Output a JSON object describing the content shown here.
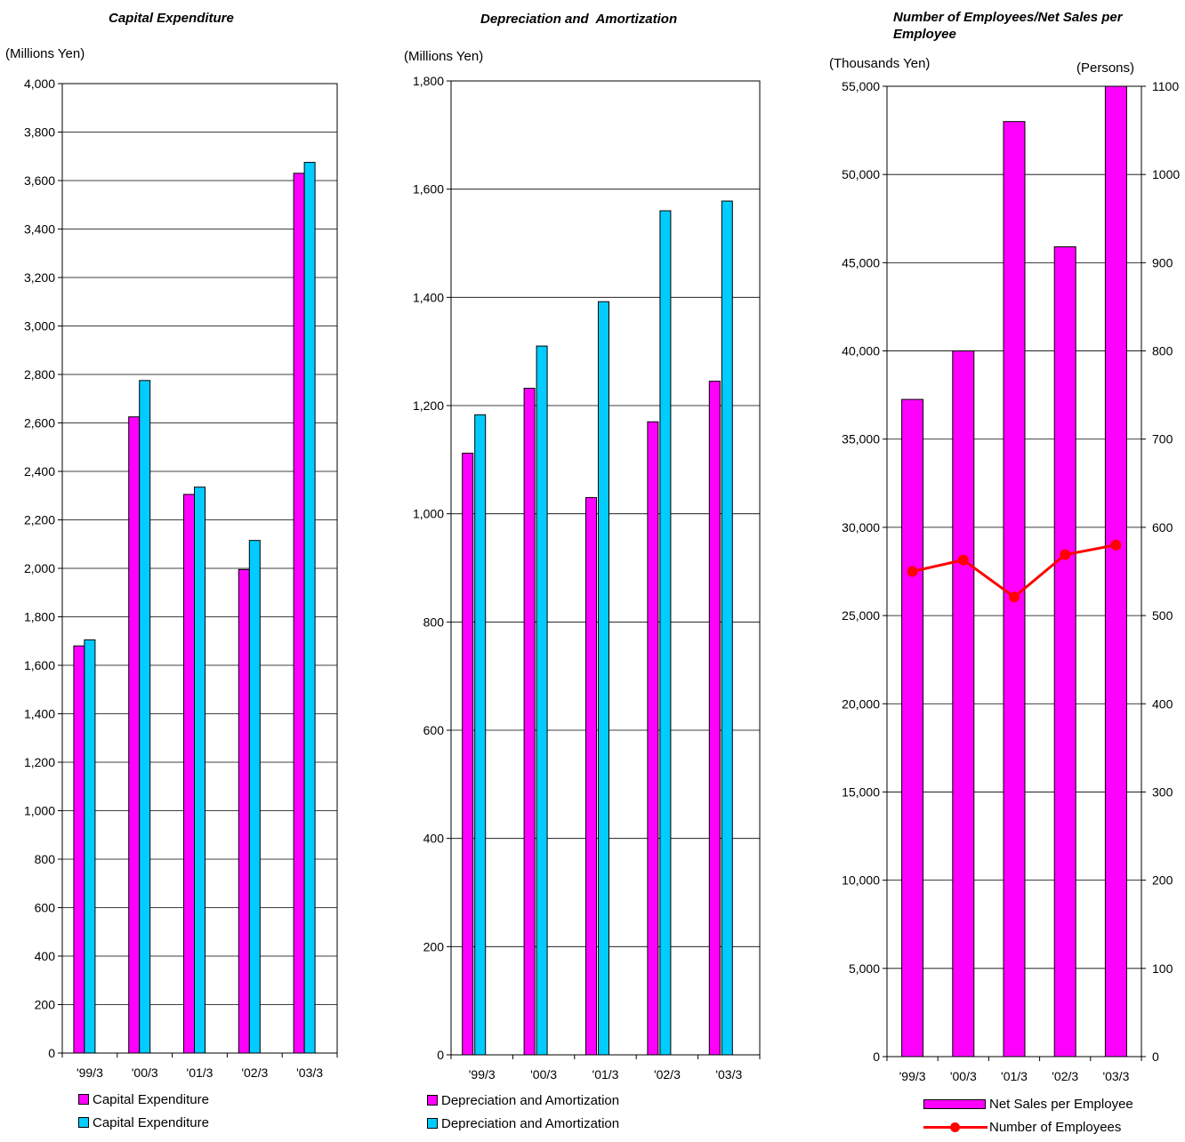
{
  "chart_data": [
    {
      "type": "bar",
      "title": "Capital Expenditure",
      "ylabel": "(Millions Yen)",
      "categories": [
        "'99/3",
        "'00/3",
        "'01/3",
        "'02/3",
        "'03/3"
      ],
      "yticks": [
        "0",
        "200",
        "400",
        "600",
        "800",
        "1,000",
        "1,200",
        "1,400",
        "1,600",
        "1,800",
        "2,000",
        "2,200",
        "2,400",
        "2,600",
        "2,800",
        "3,000",
        "3,200",
        "3,400",
        "3,600",
        "3,800",
        "4,000"
      ],
      "ylim": [
        0,
        4000
      ],
      "grid": true,
      "legend_position": "bottom",
      "series": [
        {
          "name": "Capital Expenditure",
          "color": "#ff00ff",
          "values": [
            1680,
            2625,
            2305,
            1995,
            3630
          ]
        },
        {
          "name": "Capital Expenditure",
          "color": "#00ccff",
          "values": [
            1705,
            2775,
            2335,
            2115,
            3675
          ]
        }
      ]
    },
    {
      "type": "bar",
      "title": "Depreciation and  Amortization",
      "ylabel": "(Millions Yen)",
      "categories": [
        "'99/3",
        "'00/3",
        "'01/3",
        "'02/3",
        "'03/3"
      ],
      "yticks": [
        "0",
        "200",
        "400",
        "600",
        "800",
        "1,000",
        "1,200",
        "1,400",
        "1,600",
        "1,800"
      ],
      "ylim": [
        0,
        1800
      ],
      "grid": true,
      "legend_position": "bottom",
      "series": [
        {
          "name": "Depreciation and Amortization",
          "color": "#ff00ff",
          "values": [
            1112,
            1232,
            1030,
            1170,
            1245
          ]
        },
        {
          "name": "Depreciation and Amortization",
          "color": "#00ccff",
          "values": [
            1183,
            1310,
            1392,
            1560,
            1578
          ]
        }
      ]
    },
    {
      "type": "bar",
      "title": "Number of Employees/Net Sales per Employee",
      "ylabel": "(Thousands Yen)",
      "y2label": "(Persons)",
      "categories": [
        "'99/3",
        "'00/3",
        "'01/3",
        "'02/3",
        "'03/3"
      ],
      "yticks": [
        "0",
        "5,000",
        "10,000",
        "15,000",
        "20,000",
        "25,000",
        "30,000",
        "35,000",
        "40,000",
        "45,000",
        "50,000",
        "55,000"
      ],
      "y2ticks": [
        "0",
        "100",
        "200",
        "300",
        "400",
        "500",
        "600",
        "700",
        "800",
        "900",
        "1000",
        "1100"
      ],
      "ylim": [
        0,
        55000
      ],
      "y2lim": [
        0,
        1100
      ],
      "grid": true,
      "legend_position": "bottom",
      "series": [
        {
          "name": "Net Sales per Employee",
          "type": "bar",
          "axis": "left",
          "color": "#ff00ff",
          "values": [
            37250,
            40000,
            53000,
            45900,
            55200
          ]
        },
        {
          "name": "Number of Employees",
          "type": "line",
          "axis": "right",
          "color": "#ff0000",
          "values": [
            550,
            563,
            521,
            569,
            580
          ]
        }
      ]
    }
  ]
}
